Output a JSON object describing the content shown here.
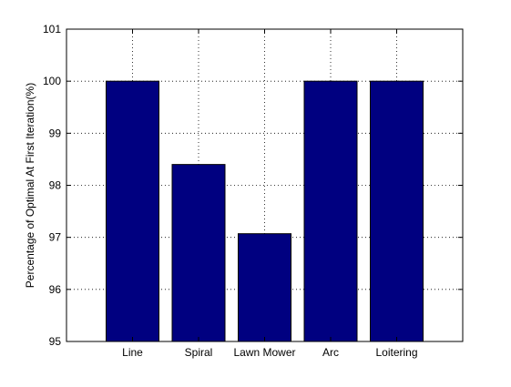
{
  "chart_data": {
    "type": "bar",
    "categories": [
      "Line",
      "Spiral",
      "Lawn Mower",
      "Arc",
      "Loitering"
    ],
    "values": [
      100,
      98.4,
      97.07,
      100,
      100
    ],
    "title": "",
    "xlabel": "",
    "ylabel": "Percentage of Optimal At First Iteration(%)",
    "ylim": [
      95,
      101
    ],
    "yticks": [
      95,
      96,
      97,
      98,
      99,
      100,
      101
    ],
    "grid": true,
    "bar_color": "#000080"
  }
}
